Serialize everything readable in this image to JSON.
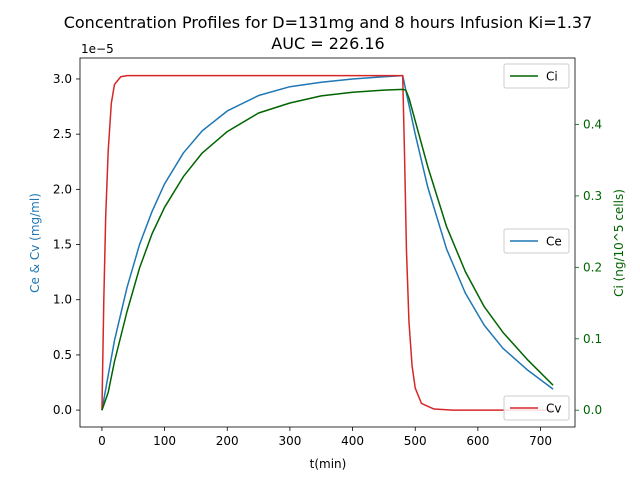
{
  "chart_data": {
    "type": "line",
    "title_line1": "Concentration Profiles for D=131mg and 8 hours Infusion Ki=1.37",
    "title_line2": "AUC = 226.16",
    "xlabel": "t(min)",
    "ylabel_left": "Ce & Cv (mg/ml)",
    "ylabel_right": "Ci (ng/10^5 cells)",
    "left_axis_offset_label": "1e−5",
    "xlim": [
      -35,
      755
    ],
    "ylim_left": [
      -0.153,
      3.19
    ],
    "ylim_right": [
      -0.0235,
      0.493
    ],
    "x_ticks": [
      0,
      100,
      200,
      300,
      400,
      500,
      600,
      700
    ],
    "x_tick_labels": [
      "0",
      "100",
      "200",
      "300",
      "400",
      "500",
      "600",
      "700"
    ],
    "y_left_ticks": [
      0.0,
      0.5,
      1.0,
      1.5,
      2.0,
      2.5,
      3.0
    ],
    "y_left_tick_labels": [
      "0.0",
      "0.5",
      "1.0",
      "1.5",
      "2.0",
      "2.5",
      "3.0"
    ],
    "y_right_ticks": [
      0.0,
      0.1,
      0.2,
      0.3,
      0.4
    ],
    "y_right_tick_labels": [
      "0.0",
      "0.1",
      "0.2",
      "0.3",
      "0.4"
    ],
    "infusion_end": 480,
    "t_end": 720,
    "series": [
      {
        "name": "Ce",
        "axis": "left",
        "color": "#1f77b4",
        "x": [
          0,
          20,
          40,
          60,
          80,
          100,
          130,
          160,
          200,
          250,
          300,
          350,
          400,
          450,
          480,
          500,
          520,
          550,
          580,
          610,
          640,
          680,
          720
        ],
        "values": [
          0.0,
          0.63,
          1.11,
          1.5,
          1.8,
          2.05,
          2.33,
          2.53,
          2.71,
          2.85,
          2.93,
          2.97,
          3.0,
          3.02,
          3.03,
          2.5,
          2.02,
          1.46,
          1.06,
          0.77,
          0.56,
          0.36,
          0.19
        ]
      },
      {
        "name": "Cv",
        "axis": "left",
        "color": "#d62728",
        "x": [
          0,
          3,
          6,
          10,
          15,
          20,
          30,
          40,
          60,
          480,
          483,
          486,
          490,
          495,
          500,
          510,
          530,
          560,
          720
        ],
        "values": [
          0.0,
          1.0,
          1.75,
          2.35,
          2.78,
          2.95,
          3.02,
          3.03,
          3.03,
          3.03,
          2.3,
          1.45,
          0.8,
          0.4,
          0.2,
          0.06,
          0.01,
          0.0,
          0.0
        ]
      },
      {
        "name": "Ci",
        "axis": "right",
        "color": "#006400",
        "x": [
          0,
          10,
          20,
          40,
          60,
          80,
          100,
          130,
          160,
          200,
          250,
          300,
          350,
          400,
          450,
          480,
          485,
          490,
          500,
          520,
          550,
          580,
          610,
          640,
          680,
          720
        ],
        "values": [
          0.0,
          0.025,
          0.068,
          0.138,
          0.199,
          0.247,
          0.284,
          0.327,
          0.36,
          0.39,
          0.416,
          0.43,
          0.44,
          0.445,
          0.448,
          0.449,
          0.448,
          0.437,
          0.405,
          0.341,
          0.257,
          0.194,
          0.145,
          0.109,
          0.07,
          0.035
        ]
      }
    ],
    "legends": [
      {
        "label": "Ci",
        "series": "Ci",
        "placement": "upper-right"
      },
      {
        "label": "Ce",
        "series": "Ce",
        "placement": "center-right"
      },
      {
        "label": "Cv",
        "series": "Cv",
        "placement": "lower-right"
      }
    ]
  }
}
